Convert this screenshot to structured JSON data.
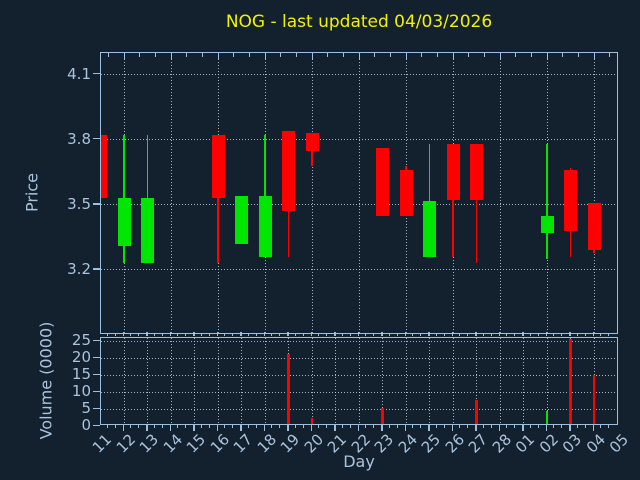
{
  "title": "NOG - last updated 04/03/2026",
  "axes": {
    "price_label": "Price",
    "volume_label": "Volume (0000)",
    "x_label": "Day"
  },
  "colors": {
    "background": "#13202d",
    "axis_spine": "#9cc0e2",
    "axis_text": "#a9c4de",
    "gridline": "#ccd8e2",
    "title_text": "#f2f200",
    "up_candle": "#00e600",
    "down_candle": "#ff0000"
  },
  "chart_data": {
    "type": "candlestick_with_volume",
    "title": "NOG - last updated 04/03/2026",
    "xlabel": "Day",
    "ylabel_price": "Price",
    "ylabel_volume": "Volume (0000)",
    "grid": true,
    "x_tick_labels": [
      "11",
      "12",
      "13",
      "14",
      "15",
      "16",
      "17",
      "18",
      "19",
      "20",
      "21",
      "22",
      "23",
      "24",
      "25",
      "26",
      "27",
      "28",
      "01",
      "02",
      "03",
      "04",
      "05"
    ],
    "price_axis": {
      "ticks": [
        3.2,
        3.5,
        3.8,
        4.1
      ],
      "range": [
        2.9,
        4.2
      ]
    },
    "volume_axis": {
      "ticks": [
        0,
        5,
        10,
        15,
        20,
        25
      ],
      "range": [
        0,
        26
      ]
    },
    "candles": [
      {
        "day": "11",
        "open": 3.82,
        "high": 3.82,
        "low": 3.53,
        "close": 3.53,
        "volume": 0
      },
      {
        "day": "12",
        "open": 3.31,
        "high": 3.82,
        "low": 3.23,
        "close": 3.53,
        "volume": 0.6
      },
      {
        "day": "13",
        "open": 3.23,
        "high": 3.82,
        "low": 3.23,
        "close": 3.53,
        "volume": 0.3
      },
      {
        "day": "16",
        "open": 3.82,
        "high": 3.82,
        "low": 3.23,
        "close": 3.53,
        "volume": 0.7
      },
      {
        "day": "17",
        "open": 3.32,
        "high": 3.54,
        "low": 3.32,
        "close": 3.54,
        "volume": 0
      },
      {
        "day": "18",
        "open": 3.26,
        "high": 3.82,
        "low": 3.26,
        "close": 3.54,
        "volume": 0.3
      },
      {
        "day": "19",
        "open": 3.84,
        "high": 3.84,
        "low": 3.26,
        "close": 3.47,
        "volume": 21.4
      },
      {
        "day": "20",
        "open": 3.83,
        "high": 3.83,
        "low": 3.68,
        "close": 3.75,
        "volume": 2.5
      },
      {
        "day": "23",
        "open": 3.76,
        "high": 3.76,
        "low": 3.45,
        "close": 3.45,
        "volume": 5.2
      },
      {
        "day": "24",
        "open": 3.66,
        "high": 3.68,
        "low": 3.45,
        "close": 3.45,
        "volume": 0.4
      },
      {
        "day": "25",
        "open": 3.26,
        "high": 3.78,
        "low": 3.26,
        "close": 3.52,
        "volume": 0
      },
      {
        "day": "26",
        "open": 3.78,
        "high": 3.78,
        "low": 3.26,
        "close": 3.52,
        "volume": 0
      },
      {
        "day": "27",
        "open": 3.78,
        "high": 3.78,
        "low": 3.23,
        "close": 3.52,
        "volume": 7.8
      },
      {
        "day": "02",
        "open": 3.37,
        "high": 3.78,
        "low": 3.25,
        "close": 3.45,
        "volume": 4.3
      },
      {
        "day": "03",
        "open": 3.66,
        "high": 3.67,
        "low": 3.26,
        "close": 3.38,
        "volume": 25.8
      },
      {
        "day": "04",
        "open": 3.51,
        "high": 3.51,
        "low": 3.28,
        "close": 3.29,
        "volume": 15
      }
    ]
  }
}
